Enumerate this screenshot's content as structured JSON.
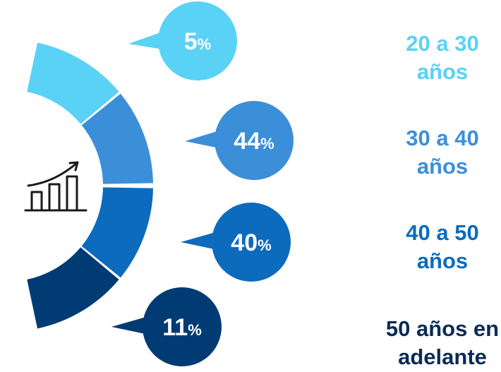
{
  "chart_data": {
    "type": "pie",
    "categories": [
      "20 a 30 años",
      "30 a 40 años",
      "40 a 50 años",
      "50 años en adelante"
    ],
    "values": [
      5,
      44,
      40,
      11
    ],
    "unit": "%",
    "labels": [
      {
        "line1": "20 a 30",
        "line2": "años",
        "value_text": "5",
        "unit_text": "%"
      },
      {
        "line1": "30 a 40",
        "line2": "años",
        "value_text": "44",
        "unit_text": "%"
      },
      {
        "line1": "40 a 50",
        "line2": "años",
        "value_text": "40",
        "unit_text": "%"
      },
      {
        "line1": "50 años en",
        "line2": "adelante",
        "value_text": "11",
        "unit_text": "%"
      }
    ],
    "colors": [
      "#5ad2f5",
      "#3b8fd9",
      "#0c6bbd",
      "#003b73"
    ],
    "label_colors": [
      "#5ad2f5",
      "#3b8fd9",
      "#0c6bbd",
      "#0b2b57"
    ],
    "center_icon": "growth-chart-icon",
    "title": "",
    "legend": "right"
  }
}
